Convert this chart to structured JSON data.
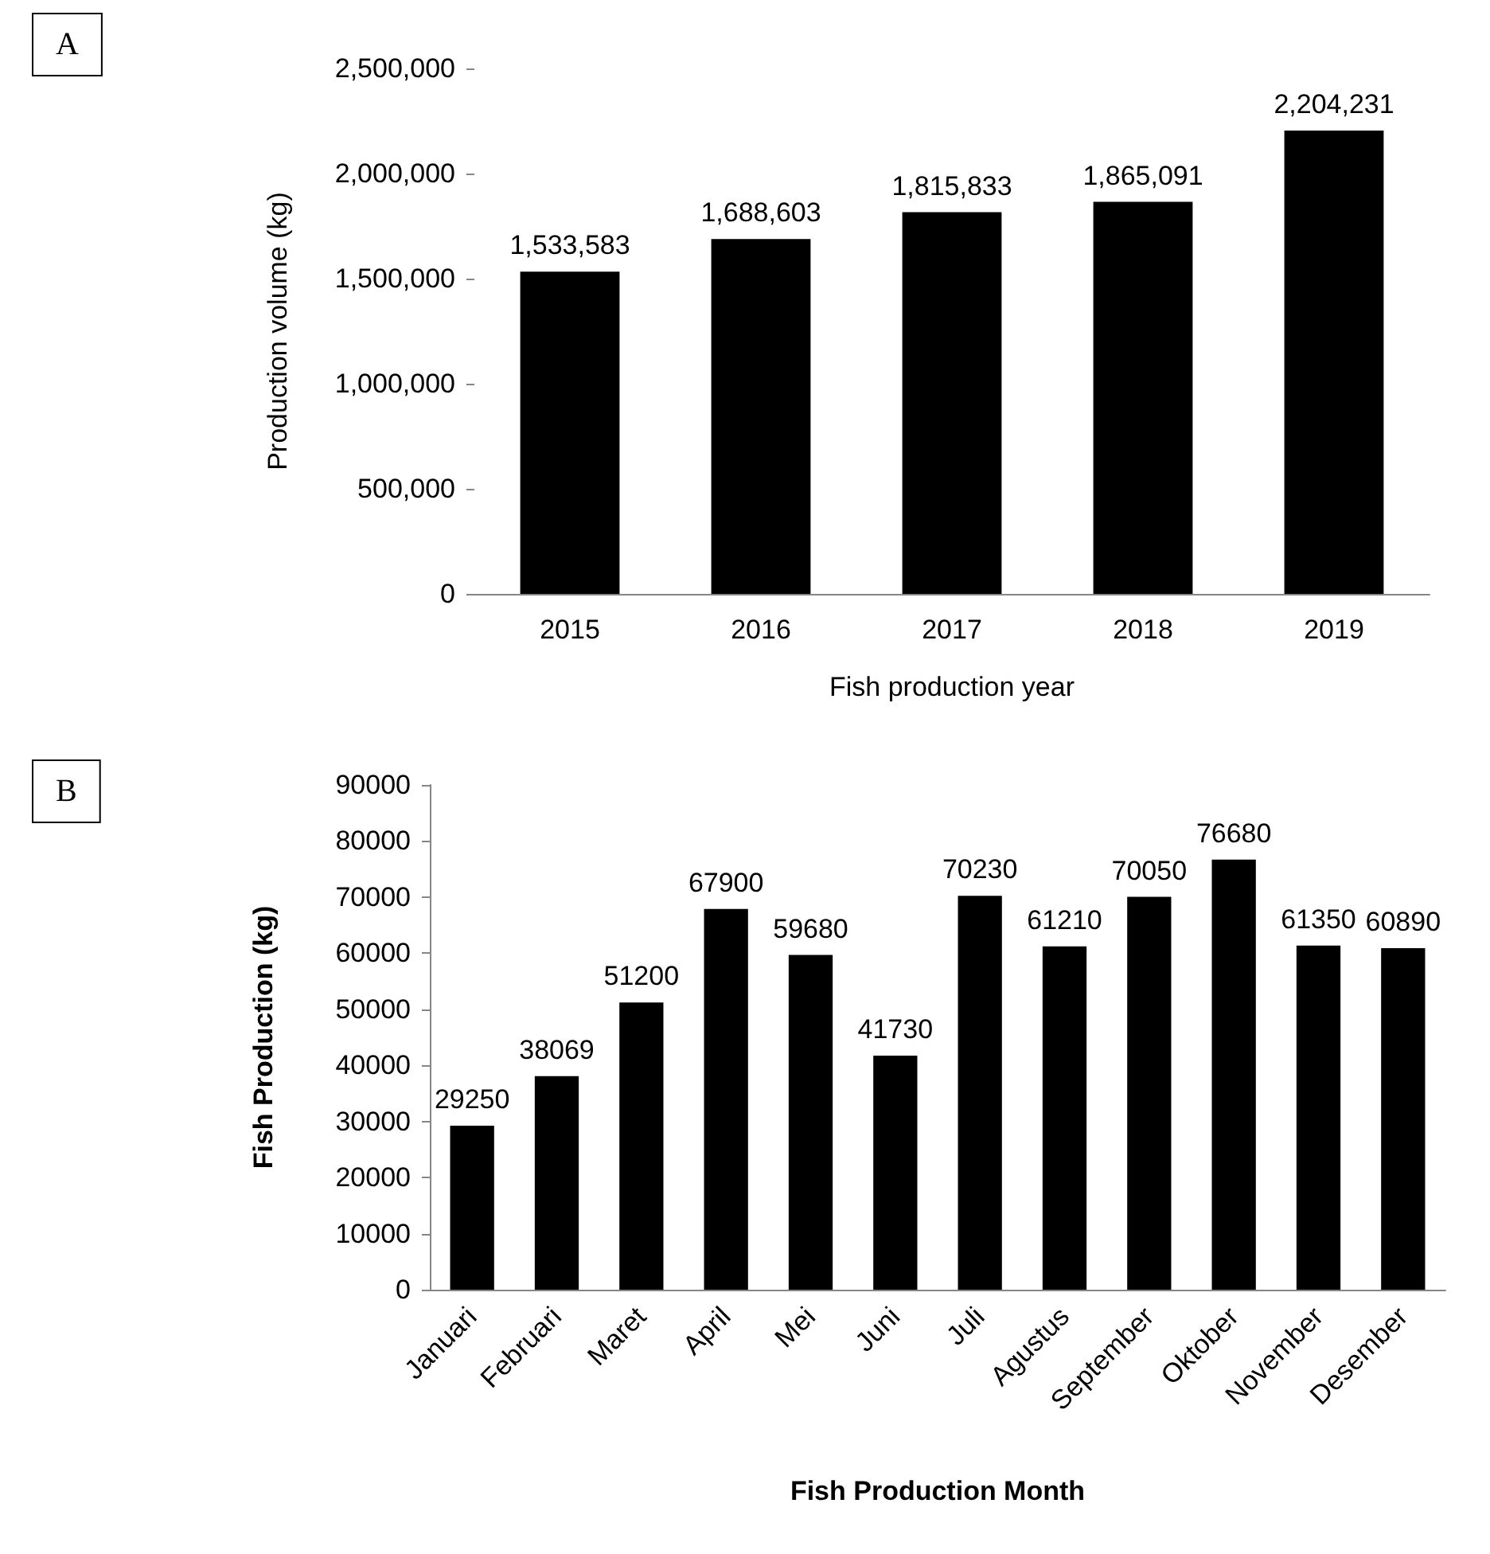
{
  "chart_data": [
    {
      "type": "bar",
      "annotations": [
        "A"
      ],
      "xlabel": "Fish production year",
      "ylabel": "Production volume (kg)",
      "categories": [
        "2015",
        "2016",
        "2017",
        "2018",
        "2019"
      ],
      "values": [
        1533583,
        1688603,
        1815833,
        1865091,
        2204231
      ],
      "value_labels": [
        "1,533,583",
        "1,688,603",
        "1,815,833",
        "1,865,091",
        "2,204,231"
      ],
      "color": "#000000",
      "ylim": [
        0,
        2500000
      ],
      "yticks": [
        {
          "value": 0,
          "label": "0"
        },
        {
          "value": 500000,
          "label": "500,000"
        },
        {
          "value": 1000000,
          "label": "1,000,000"
        },
        {
          "value": 1500000,
          "label": "1,500,000"
        },
        {
          "value": 2000000,
          "label": "2,000,000"
        },
        {
          "value": 2500000,
          "label": "2,500,000"
        }
      ],
      "grid": false
    },
    {
      "type": "bar",
      "annotations": [
        "B"
      ],
      "xlabel": "Fish Production Month",
      "ylabel": "Fish Production (kg)",
      "categories": [
        "Januari",
        "Februari",
        "Maret",
        "April",
        "Mei",
        "Juni",
        "Juli",
        "Agustus",
        "September",
        "Oktober",
        "November",
        "Desember"
      ],
      "values": [
        29250,
        38069,
        51200,
        67900,
        59680,
        41730,
        70230,
        61210,
        70050,
        76680,
        61350,
        60890
      ],
      "data_labels": true,
      "color": "#000000",
      "ylim": [
        0,
        90000
      ],
      "yticks": [
        0,
        10000,
        20000,
        30000,
        40000,
        50000,
        60000,
        70000,
        80000,
        90000
      ],
      "grid": false
    }
  ]
}
